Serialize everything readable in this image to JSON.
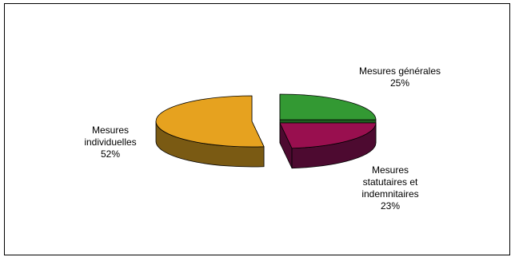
{
  "chart_data": {
    "type": "pie",
    "style": "3d-exploded",
    "title": "",
    "slices": [
      {
        "label_lines": [
          "Mesures générales"
        ],
        "value": 25,
        "percent_label": "25%",
        "color": "#339933",
        "side_color": "#1f5e1f"
      },
      {
        "label_lines": [
          "Mesures",
          "statutaires et",
          "indemnitaires"
        ],
        "value": 23,
        "percent_label": "23%",
        "color": "#990f4f",
        "side_color": "#4d0a30"
      },
      {
        "label_lines": [
          "Mesures",
          "individuelles"
        ],
        "value": 52,
        "percent_label": "52%",
        "color": "#e6a21f",
        "side_color": "#7a5a13"
      }
    ],
    "legend": "none",
    "grid": false
  }
}
